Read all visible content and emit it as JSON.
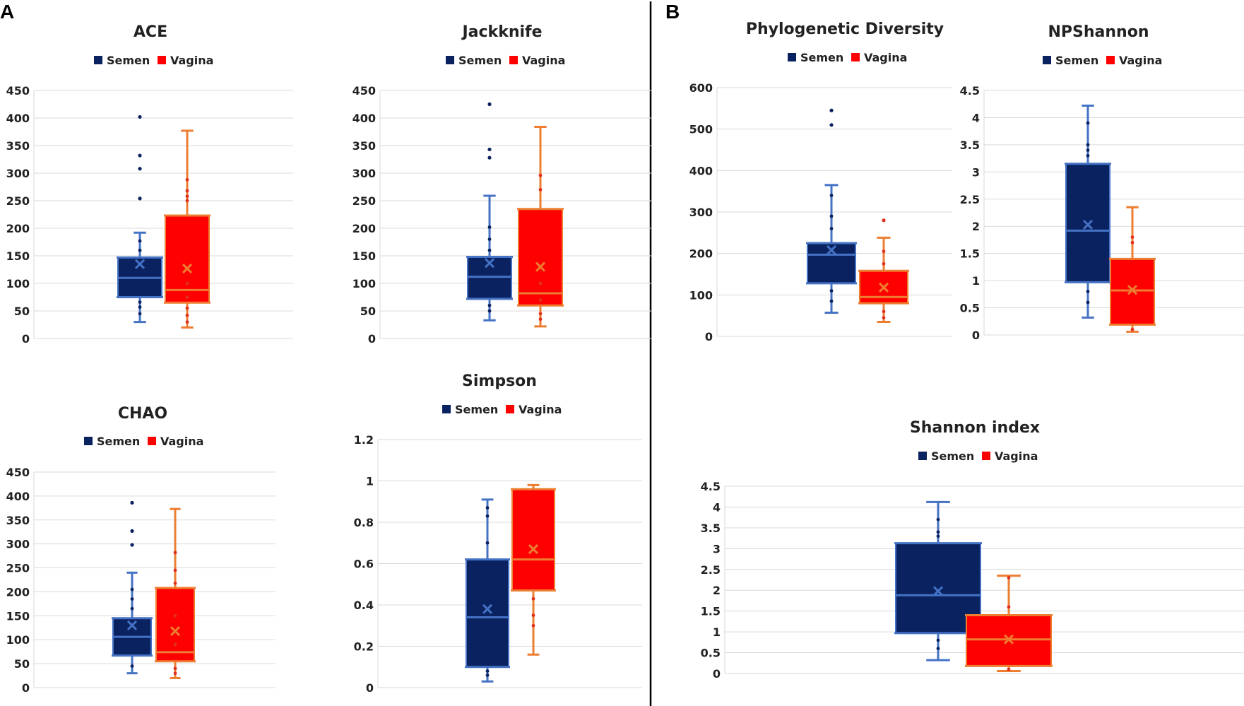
{
  "panels": [
    {
      "label": "A"
    },
    {
      "label": "B"
    }
  ],
  "colors": {
    "semen_fill": "#0b2260",
    "semen_line": "#4472c4",
    "vagina_fill": "#ff0000",
    "vagina_line": "#ed7d31",
    "semen_dot": "#0b2260",
    "vagina_dot": "#e0301e",
    "grid": "#d9d9d9",
    "divider": "#000000"
  },
  "legend": {
    "semen": "Semen",
    "vagina": "Vagina"
  },
  "chart_data": [
    {
      "type": "box",
      "title": "ACE",
      "panel": "A",
      "ylim": [
        0,
        450
      ],
      "yticks": [
        0,
        50,
        100,
        150,
        200,
        250,
        300,
        350,
        400,
        450
      ],
      "series": [
        {
          "name": "Semen",
          "min": 30,
          "q1": 75,
          "median": 110,
          "q3": 147,
          "max": 192,
          "mean": 135,
          "outliers": [
            254,
            308,
            332,
            402
          ],
          "points": [
            45,
            57,
            66,
            90,
            130,
            160,
            177
          ]
        },
        {
          "name": "Vagina",
          "min": 20,
          "q1": 65,
          "median": 88,
          "q3": 223,
          "max": 377,
          "mean": 127,
          "outliers": [],
          "points": [
            30,
            42,
            55,
            75,
            100,
            250,
            258,
            268,
            288
          ]
        }
      ]
    },
    {
      "type": "box",
      "title": "Jackknife",
      "panel": "A",
      "ylim": [
        0,
        450
      ],
      "yticks": [
        0,
        50,
        100,
        150,
        200,
        250,
        300,
        350,
        400,
        450
      ],
      "series": [
        {
          "name": "Semen",
          "min": 33,
          "q1": 72,
          "median": 112,
          "q3": 148,
          "max": 259,
          "mean": 137,
          "outliers": [
            328,
            343,
            425
          ],
          "points": [
            50,
            60,
            90,
            125,
            160,
            180,
            202
          ]
        },
        {
          "name": "Vagina",
          "min": 22,
          "q1": 60,
          "median": 82,
          "q3": 235,
          "max": 384,
          "mean": 130,
          "outliers": [],
          "points": [
            35,
            45,
            70,
            100,
            270,
            296
          ]
        }
      ]
    },
    {
      "type": "box",
      "title": "CHAO",
      "panel": "A",
      "ylim": [
        0,
        450
      ],
      "yticks": [
        0,
        50,
        100,
        150,
        200,
        250,
        300,
        350,
        400,
        450
      ],
      "series": [
        {
          "name": "Semen",
          "min": 30,
          "q1": 67,
          "median": 106,
          "q3": 145,
          "max": 240,
          "mean": 130,
          "outliers": [
            298,
            327,
            386
          ],
          "points": [
            45,
            85,
            125,
            165,
            185,
            205
          ]
        },
        {
          "name": "Vagina",
          "min": 20,
          "q1": 55,
          "median": 74,
          "q3": 208,
          "max": 373,
          "mean": 118,
          "outliers": [],
          "points": [
            30,
            40,
            90,
            150,
            218,
            245,
            282
          ]
        }
      ]
    },
    {
      "type": "box",
      "title": "Simpson",
      "panel": "A",
      "ylim": [
        0,
        1.2
      ],
      "yticks": [
        0,
        0.2,
        0.4,
        0.6,
        0.8,
        1,
        1.2
      ],
      "series": [
        {
          "name": "Semen",
          "min": 0.03,
          "q1": 0.1,
          "median": 0.34,
          "q3": 0.62,
          "max": 0.91,
          "mean": 0.38,
          "outliers": [],
          "points": [
            0.06,
            0.08,
            0.7,
            0.83,
            0.87
          ]
        },
        {
          "name": "Vagina",
          "min": 0.16,
          "q1": 0.47,
          "median": 0.62,
          "q3": 0.96,
          "max": 0.98,
          "mean": 0.67,
          "outliers": [],
          "points": [
            0.3,
            0.35,
            0.43
          ]
        }
      ]
    },
    {
      "type": "box",
      "title": "Phylogenetic Diversity",
      "panel": "B",
      "ylim": [
        0,
        600
      ],
      "yticks": [
        0,
        100,
        200,
        300,
        400,
        500,
        600
      ],
      "series": [
        {
          "name": "Semen",
          "min": 57,
          "q1": 128,
          "median": 197,
          "q3": 225,
          "max": 365,
          "mean": 208,
          "outliers": [
            510,
            545
          ],
          "points": [
            85,
            110,
            160,
            260,
            290,
            340
          ]
        },
        {
          "name": "Vagina",
          "min": 35,
          "q1": 80,
          "median": 95,
          "q3": 158,
          "max": 238,
          "mean": 118,
          "outliers": [
            280
          ],
          "points": [
            45,
            60,
            175,
            205
          ]
        }
      ]
    },
    {
      "type": "box",
      "title": "NPShannon",
      "panel": "B",
      "ylim": [
        0,
        4.5
      ],
      "yticks": [
        0,
        0.5,
        1,
        1.5,
        2,
        2.5,
        3,
        3.5,
        4,
        4.5
      ],
      "yticklabels": [
        "0",
        "0.5",
        "1",
        "1.5",
        "2",
        "2.5",
        "3",
        "3.5",
        "4",
        "4.5"
      ],
      "series": [
        {
          "name": "Semen",
          "min": 0.32,
          "q1": 0.97,
          "median": 1.92,
          "q3": 3.15,
          "max": 4.22,
          "mean": 2.03,
          "outliers": [],
          "points": [
            0.6,
            0.8,
            3.3,
            3.4,
            3.5,
            3.9
          ]
        },
        {
          "name": "Vagina",
          "min": 0.06,
          "q1": 0.19,
          "median": 0.82,
          "q3": 1.4,
          "max": 2.35,
          "mean": 0.83,
          "outliers": [],
          "points": [
            0.1,
            1.7,
            1.8
          ]
        }
      ]
    },
    {
      "type": "box",
      "title": "Shannon index",
      "panel": "B",
      "ylim": [
        0,
        4.5
      ],
      "yticks": [
        0,
        0.5,
        1,
        1.5,
        2,
        2.5,
        3,
        3.5,
        4,
        4.5
      ],
      "series": [
        {
          "name": "Semen",
          "min": 0.32,
          "q1": 0.97,
          "median": 1.88,
          "q3": 3.13,
          "max": 4.12,
          "mean": 1.98,
          "outliers": [],
          "points": [
            0.6,
            0.8,
            3.3,
            3.4,
            3.7
          ]
        },
        {
          "name": "Vagina",
          "min": 0.06,
          "q1": 0.18,
          "median": 0.82,
          "q3": 1.4,
          "max": 2.35,
          "mean": 0.82,
          "outliers": [],
          "points": [
            0.1,
            1.6,
            2.3
          ]
        }
      ]
    }
  ]
}
